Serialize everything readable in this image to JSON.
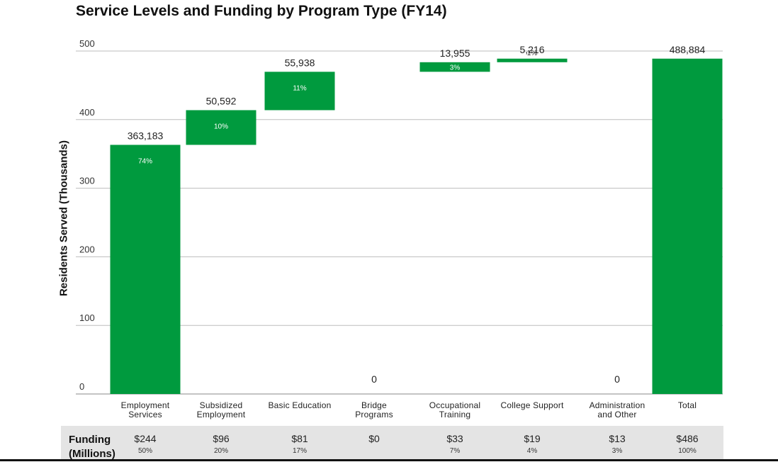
{
  "title": "Service Levels and Funding by Program Type (FY14)",
  "colors": {
    "bar": "#009a3e",
    "grid": "#bdbdbd",
    "band": "#e4e4e4"
  },
  "chart_data": {
    "type": "bar",
    "subtype": "waterfall",
    "ylabel": "Residents Served (Thousands)",
    "ylim": [
      0,
      500
    ],
    "yticks": [
      0,
      100,
      200,
      300,
      400,
      500
    ],
    "grid": true,
    "categories": [
      "Employment\nServices",
      "Subsidized\nEmployment",
      "Basic Education",
      "Bridge\nPrograms",
      "Occupational\nTraining",
      "College Support",
      "Administration\nand Other",
      "Total"
    ],
    "values": [
      363183,
      50592,
      55938,
      0,
      13955,
      5216,
      0,
      488884
    ],
    "value_labels": [
      "363,183",
      "50,592",
      "55,938",
      "0",
      "13,955",
      "5,216",
      "0",
      "488,884"
    ],
    "percent_labels": [
      "74%",
      "10%",
      "11%",
      "",
      "3%",
      "1%",
      "",
      ""
    ],
    "is_total": [
      false,
      false,
      false,
      false,
      false,
      false,
      false,
      true
    ]
  },
  "funding": {
    "label": "Funding\n(Millions)",
    "amounts": [
      "$244",
      "$96",
      "$81",
      "$0",
      "$33",
      "$19",
      "$13",
      "$486"
    ],
    "percents": [
      "50%",
      "20%",
      "17%",
      "",
      "7%",
      "4%",
      "3%",
      "100%"
    ]
  }
}
